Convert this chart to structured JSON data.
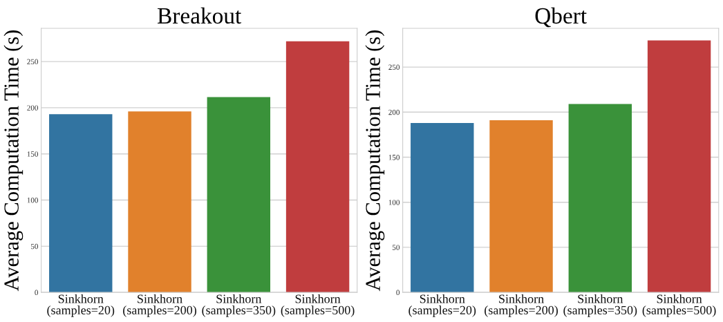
{
  "chart_data": [
    {
      "type": "bar",
      "title": "Breakout",
      "ylabel": "Average Computation Time (s)",
      "categories": [
        "Sinkhorn\n(samples=20)",
        "Sinkhorn\n(samples=200)",
        "Sinkhorn\n(samples=350)",
        "Sinkhorn\n(samples=500)"
      ],
      "values": [
        193,
        196,
        211.5,
        272
      ],
      "colors": [
        "#3274a1",
        "#e1812c",
        "#3a923a",
        "#c03d3e"
      ],
      "ylim": [
        0,
        286
      ],
      "yticks": [
        0,
        50,
        100,
        150,
        200,
        250
      ],
      "grid": "y"
    },
    {
      "type": "bar",
      "title": "Qbert",
      "ylabel": "Average Computation Time (s)",
      "categories": [
        "Sinkhorn\n(samples=20)",
        "Sinkhorn\n(samples=200)",
        "Sinkhorn\n(samples=350)",
        "Sinkhorn\n(samples=500)"
      ],
      "values": [
        188,
        191,
        209,
        279.5
      ],
      "colors": [
        "#3274a1",
        "#e1812c",
        "#3a923a",
        "#c03d3e"
      ],
      "ylim": [
        0,
        293
      ],
      "yticks": [
        0,
        50,
        100,
        150,
        200,
        250
      ],
      "grid": "y"
    }
  ]
}
